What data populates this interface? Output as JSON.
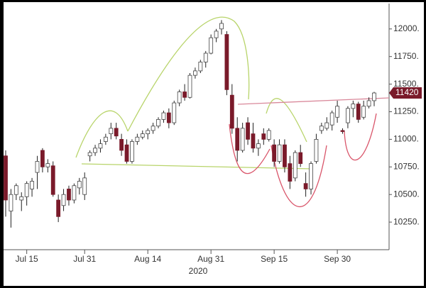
{
  "chart_data": {
    "type": "candlestick",
    "categories": [
      null,
      null,
      null,
      null,
      "Jul 15",
      null,
      null,
      null,
      null,
      null,
      null,
      null,
      null,
      null,
      null,
      "Jul 31",
      null,
      null,
      null,
      null,
      null,
      null,
      null,
      null,
      null,
      null,
      null,
      "Aug 14",
      null,
      null,
      null,
      null,
      null,
      null,
      null,
      null,
      null,
      null,
      null,
      "Aug 31",
      null,
      null,
      null,
      null,
      null,
      null,
      null,
      null,
      null,
      null,
      null,
      "Sep 15",
      null,
      null,
      null,
      null,
      null,
      null,
      null,
      null,
      null,
      null,
      null,
      "Sep 30",
      null,
      null,
      null,
      null,
      null,
      null,
      null
    ],
    "open": [
      10850,
      10350,
      10500,
      10450,
      10480,
      10550,
      10700,
      10900,
      10750,
      10760,
      10450,
      10400,
      10550,
      10450,
      10560,
      10500,
      10850,
      10880,
      10920,
      10980,
      11050,
      11100,
      11000,
      10950,
      10800,
      10980,
      11020,
      11050,
      11080,
      11120,
      11180,
      11240,
      11150,
      11330,
      11430,
      11380,
      11580,
      11620,
      11700,
      11780,
      11920,
      12000,
      11950,
      11400,
      11100,
      10900,
      11150,
      11050,
      10920,
      11050,
      11000,
      10950,
      10800,
      10950,
      10780,
      10650,
      10880,
      10600,
      10550,
      10800,
      11080,
      11100,
      11130,
      11200,
      11080,
      11150,
      11280,
      11320,
      11200,
      11300,
      11350
    ],
    "high": [
      10900,
      10550,
      10600,
      10520,
      10620,
      10650,
      10850,
      10920,
      10820,
      10800,
      10500,
      10550,
      10580,
      10600,
      10650,
      10700,
      10900,
      10950,
      11000,
      11050,
      11150,
      11150,
      11050,
      11000,
      11000,
      11050,
      11080,
      11100,
      11150,
      11200,
      11260,
      11280,
      11350,
      11450,
      11500,
      11600,
      11650,
      11720,
      11800,
      11950,
      12000,
      12080,
      11980,
      11500,
      11200,
      11150,
      11200,
      11150,
      11000,
      11100,
      11100,
      11000,
      11000,
      11000,
      10850,
      10900,
      10950,
      10700,
      10800,
      11050,
      11150,
      11200,
      11260,
      11350,
      11100,
      11300,
      11350,
      11340,
      11350,
      11380,
      11430
    ],
    "low": [
      10300,
      10200,
      10450,
      10350,
      10400,
      10480,
      10550,
      10700,
      10700,
      10480,
      10250,
      10350,
      10400,
      10420,
      10500,
      10450,
      10800,
      10850,
      10880,
      10950,
      11000,
      11000,
      10850,
      10780,
      10780,
      10950,
      11000,
      11000,
      11050,
      11100,
      11150,
      11100,
      11130,
      11300,
      11350,
      11370,
      11550,
      11600,
      11650,
      11770,
      11880,
      11950,
      11400,
      11050,
      10800,
      10880,
      10950,
      10880,
      10850,
      10950,
      10980,
      10750,
      10780,
      10700,
      10550,
      10620,
      10750,
      10480,
      10500,
      10780,
      11050,
      11080,
      11080,
      11150,
      11050,
      11100,
      11200,
      11150,
      11180,
      11280,
      11300
    ],
    "close": [
      10450,
      10500,
      10580,
      10480,
      10600,
      10620,
      10800,
      10750,
      10780,
      10500,
      10300,
      10500,
      10450,
      10580,
      10620,
      10650,
      10880,
      10920,
      10960,
      11020,
      11100,
      11030,
      10900,
      10800,
      10980,
      11020,
      11050,
      11080,
      11120,
      11180,
      11240,
      11150,
      11330,
      11430,
      11380,
      11580,
      11620,
      11700,
      11780,
      11920,
      11980,
      12050,
      11450,
      11100,
      10900,
      11100,
      11000,
      10920,
      10960,
      11000,
      11080,
      10800,
      10950,
      10750,
      10620,
      10880,
      10780,
      10550,
      10780,
      11000,
      11120,
      11150,
      11240,
      11300,
      11070,
      11280,
      11320,
      11180,
      11300,
      11350,
      11420
    ],
    "up_color": "#ffffff",
    "down_color": "#7a1a2a",
    "ylim": [
      10000,
      12230
    ],
    "yticks": [
      {
        "value": 10250,
        "label": "10250."
      },
      {
        "value": 10500,
        "label": "10500."
      },
      {
        "value": 10750,
        "label": "10750."
      },
      {
        "value": 11000,
        "label": "11000."
      },
      {
        "value": 11250,
        "label": "11250."
      },
      {
        "value": 11500,
        "label": "11500."
      },
      {
        "value": 11750,
        "label": "11750."
      },
      {
        "value": 12000,
        "label": "12000."
      }
    ],
    "last_price": 11420,
    "year_label": "2020"
  }
}
